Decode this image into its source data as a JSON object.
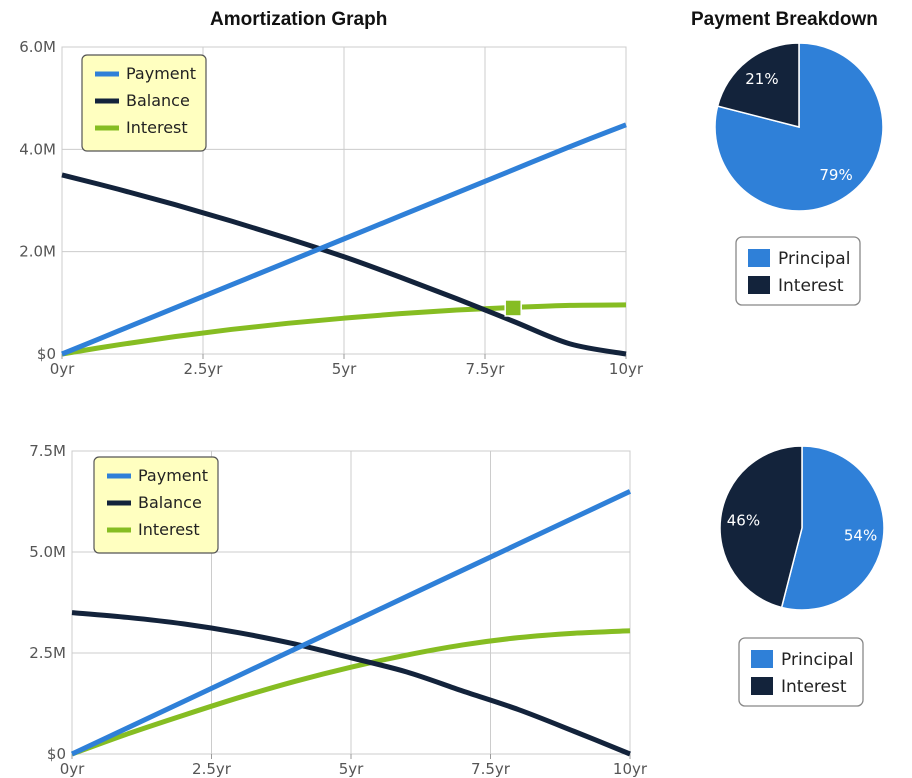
{
  "titles": {
    "amortization": "Amortization Graph",
    "breakdown": "Payment Breakdown"
  },
  "colors": {
    "payment": "#2f80d8",
    "balance": "#13233b",
    "interest": "#86bd22",
    "principal": "#2f80d8",
    "interest_slice": "#13233b",
    "legend_bg": "#ffffc0",
    "grid": "#cccccc",
    "marker": "#86bd22"
  },
  "chart_data": [
    {
      "type": "line",
      "title": "Amortization Graph",
      "x_ticks": [
        "0yr",
        "2.5yr",
        "5yr",
        "7.5yr",
        "10yr"
      ],
      "y_ticks": [
        "$0",
        "2.0M",
        "4.0M",
        "6.0M"
      ],
      "xlim": [
        0,
        10
      ],
      "ylim": [
        0,
        6000000
      ],
      "grid": true,
      "legend_position": "top-left",
      "x": [
        0,
        1,
        2,
        3,
        4,
        5,
        6,
        7,
        8,
        9,
        10
      ],
      "series": [
        {
          "name": "Payment",
          "values": [
            0,
            450000,
            900000,
            1350000,
            1800000,
            2250000,
            2700000,
            3150000,
            3600000,
            4050000,
            4480000
          ]
        },
        {
          "name": "Balance",
          "values": [
            3500000,
            3220000,
            2920000,
            2600000,
            2260000,
            1900000,
            1500000,
            1080000,
            640000,
            200000,
            0
          ]
        },
        {
          "name": "Interest",
          "values": [
            0,
            180000,
            340000,
            480000,
            600000,
            700000,
            790000,
            860000,
            910000,
            950000,
            960000
          ]
        }
      ],
      "highlight_point": {
        "x": 8,
        "y": 900000
      }
    },
    {
      "type": "pie",
      "title": "Payment Breakdown",
      "slices": [
        {
          "name": "Principal",
          "percent": 79,
          "label": "79%"
        },
        {
          "name": "Interest",
          "percent": 21,
          "label": "21%"
        }
      ],
      "legend_position": "bottom"
    },
    {
      "type": "line",
      "x_ticks": [
        "0yr",
        "2.5yr",
        "5yr",
        "7.5yr",
        "10yr"
      ],
      "y_ticks": [
        "$0",
        "2.5M",
        "5.0M",
        "7.5M"
      ],
      "xlim": [
        0,
        10
      ],
      "ylim": [
        0,
        7500000
      ],
      "grid": true,
      "legend_position": "top-left",
      "x": [
        0,
        1,
        2,
        3,
        4,
        5,
        6,
        7,
        8,
        9,
        10
      ],
      "series": [
        {
          "name": "Payment",
          "values": [
            0,
            650000,
            1300000,
            1950000,
            2600000,
            3250000,
            3900000,
            4550000,
            5200000,
            5850000,
            6500000
          ]
        },
        {
          "name": "Balance",
          "values": [
            3500000,
            3380000,
            3220000,
            3000000,
            2720000,
            2380000,
            2030000,
            1560000,
            1100000,
            560000,
            0
          ]
        },
        {
          "name": "Interest",
          "values": [
            0,
            500000,
            960000,
            1400000,
            1800000,
            2150000,
            2450000,
            2700000,
            2880000,
            2990000,
            3050000
          ]
        }
      ]
    },
    {
      "type": "pie",
      "slices": [
        {
          "name": "Principal",
          "percent": 54,
          "label": "54%"
        },
        {
          "name": "Interest",
          "percent": 46,
          "label": "46%"
        }
      ],
      "legend_position": "bottom"
    }
  ]
}
